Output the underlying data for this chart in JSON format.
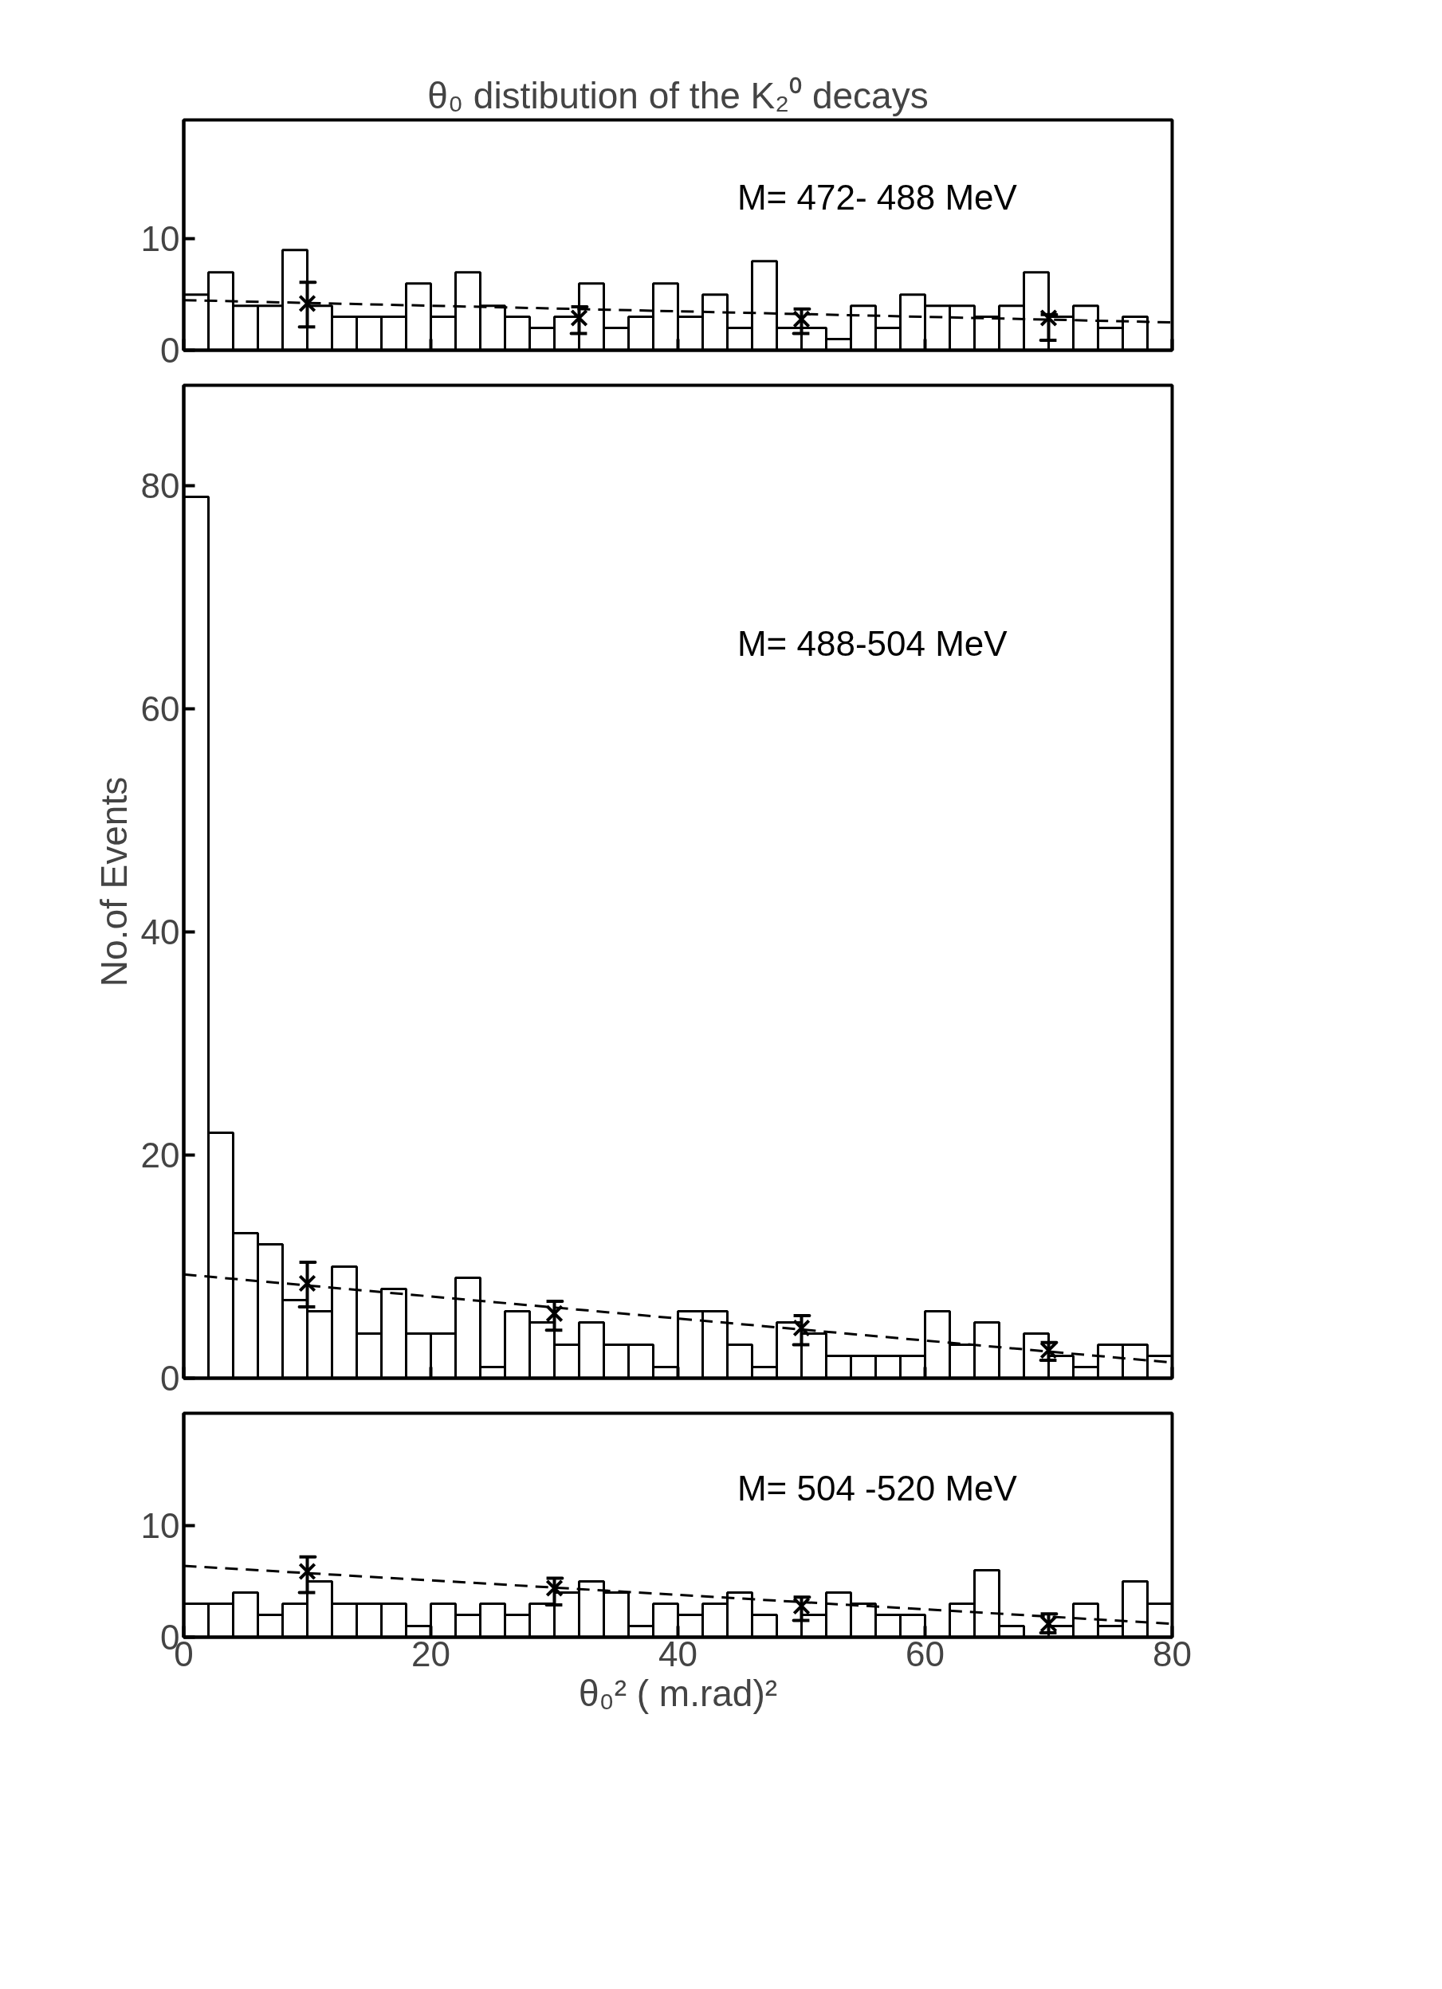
{
  "chart_data": [
    {
      "type": "histogram",
      "title": "θ₀ distibution of the K₂⁰ decays",
      "annotations": [
        "M= 472- 488  MeV"
      ],
      "color": "#000000",
      "bins": [
        0,
        2,
        4,
        6,
        8,
        10,
        12,
        14,
        16,
        18,
        20,
        22,
        24,
        26,
        28,
        30,
        32,
        34,
        36,
        38,
        40,
        42,
        44,
        46,
        48,
        50,
        52,
        54,
        56,
        58,
        60,
        62,
        64,
        66,
        68,
        70,
        72,
        74,
        76,
        78,
        80
      ],
      "values": [
        5,
        7,
        4,
        4,
        9,
        4,
        3,
        3,
        3,
        6,
        3,
        7,
        4,
        3,
        2,
        3,
        6,
        2,
        3,
        6,
        3,
        5,
        2,
        8,
        2,
        2,
        1,
        4,
        2,
        5,
        4,
        4,
        3,
        4,
        7,
        3,
        4,
        2,
        3,
        0
      ],
      "series": [
        {
          "type": "line",
          "color": "#000000",
          "line_style": "dashed",
          "x": [
            0,
            80
          ],
          "values": [
            4.5,
            2.5
          ]
        },
        {
          "type": "scatter",
          "color": "#000000",
          "marker": "cross",
          "x": [
            10,
            32,
            50,
            70
          ],
          "values": [
            4.2,
            2.9,
            2.8,
            2.9
          ],
          "errors": [
            [
              2.1,
              6.1
            ],
            [
              1.5,
              3.9
            ],
            [
              1.5,
              3.7
            ],
            [
              0.9,
              3.2
            ]
          ]
        }
      ],
      "xlim": [
        0,
        80
      ],
      "ylim": [
        0,
        20.7
      ],
      "xticks": [
        0,
        20,
        40,
        60,
        80
      ],
      "yticks": [
        0,
        10
      ],
      "tick_labels": "y"
    },
    {
      "type": "histogram",
      "ylabel": "No.of Events",
      "annotations": [
        "M= 488-504  MeV"
      ],
      "color": "#000000",
      "bins": [
        0,
        2,
        4,
        6,
        8,
        10,
        12,
        14,
        16,
        18,
        20,
        22,
        24,
        26,
        28,
        30,
        32,
        34,
        36,
        38,
        40,
        42,
        44,
        46,
        48,
        50,
        52,
        54,
        56,
        58,
        60,
        62,
        64,
        66,
        68,
        70,
        72,
        74,
        76,
        78,
        80
      ],
      "values": [
        79,
        22,
        13,
        12,
        7,
        6,
        10,
        4,
        8,
        4,
        4,
        9,
        1,
        6,
        5,
        3,
        5,
        3,
        3,
        1,
        6,
        6,
        3,
        1,
        5,
        4,
        2,
        2,
        2,
        2,
        6,
        3,
        5,
        0,
        4,
        2,
        1,
        3,
        3,
        2
      ],
      "series": [
        {
          "type": "line",
          "color": "#000000",
          "line_style": "dashed",
          "x": [
            0,
            80
          ],
          "values": [
            9.3,
            1.4
          ]
        },
        {
          "type": "scatter",
          "color": "#000000",
          "marker": "cross",
          "x": [
            10,
            30,
            50,
            70
          ],
          "values": [
            8.5,
            5.8,
            4.5,
            2.5
          ],
          "errors": [
            [
              6.4,
              10.4
            ],
            [
              4.3,
              6.9
            ],
            [
              3.0,
              5.6
            ],
            [
              1.6,
              3.2
            ]
          ]
        }
      ],
      "xlim": [
        0,
        80
      ],
      "ylim": [
        0,
        89
      ],
      "xticks": [
        0,
        20,
        40,
        60,
        80
      ],
      "yticks": [
        0,
        20,
        40,
        60,
        80
      ],
      "tick_labels": "y"
    },
    {
      "type": "histogram",
      "xlabel": "θ₀² ( m.rad)²",
      "annotations": [
        "M= 504 -520  MeV"
      ],
      "color": "#000000",
      "bins": [
        0,
        2,
        4,
        6,
        8,
        10,
        12,
        14,
        16,
        18,
        20,
        22,
        24,
        26,
        28,
        30,
        32,
        34,
        36,
        38,
        40,
        42,
        44,
        46,
        48,
        50,
        52,
        54,
        56,
        58,
        60,
        62,
        64,
        66,
        68,
        70,
        72,
        74,
        76,
        78,
        80
      ],
      "values": [
        3,
        3,
        4,
        2,
        3,
        5,
        3,
        3,
        3,
        1,
        3,
        2,
        3,
        2,
        3,
        4,
        5,
        4,
        1,
        3,
        2,
        3,
        4,
        2,
        0,
        2,
        4,
        3,
        2,
        2,
        0,
        3,
        6,
        1,
        0,
        1,
        3,
        1,
        5,
        3
      ],
      "series": [
        {
          "type": "line",
          "color": "#000000",
          "line_style": "dashed",
          "x": [
            0,
            80
          ],
          "values": [
            6.4,
            1.2
          ]
        },
        {
          "type": "scatter",
          "color": "#000000",
          "marker": "cross",
          "x": [
            10,
            30,
            50,
            70
          ],
          "values": [
            5.9,
            4.4,
            2.8,
            1.2
          ],
          "errors": [
            [
              4.0,
              7.2
            ],
            [
              2.9,
              5.3
            ],
            [
              1.5,
              3.6
            ],
            [
              0.4,
              2.1
            ]
          ]
        }
      ],
      "xlim": [
        0,
        80
      ],
      "ylim": [
        0,
        20.1
      ],
      "xticks": [
        0,
        20,
        40,
        60,
        80
      ],
      "yticks": [
        0,
        10
      ]
    }
  ]
}
